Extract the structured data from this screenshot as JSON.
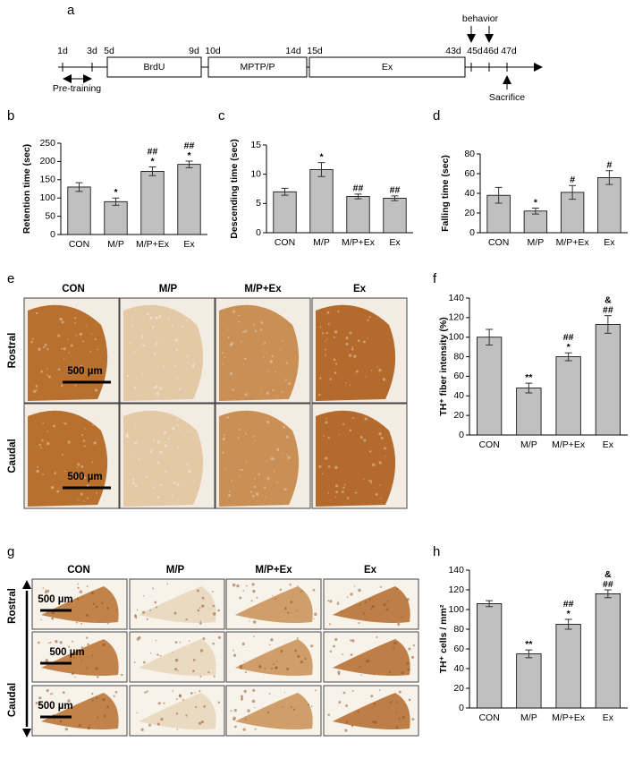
{
  "panel_labels": [
    "a",
    "b",
    "c",
    "d",
    "e",
    "f",
    "g",
    "h"
  ],
  "timeline": {
    "days": [
      "1d",
      "3d",
      "5d",
      "9d",
      "10d",
      "14d",
      "15d",
      "43d",
      "45d",
      "46d",
      "47d"
    ],
    "periods": [
      "BrdU",
      "MPTP/P",
      "Ex"
    ],
    "pre_training": "Pre-training",
    "behavior": "behavior",
    "sacrifice": "Sacrifice"
  },
  "chart_data": [
    {
      "type": "bar",
      "y_label": "Retention time (sec)",
      "categories": [
        "CON",
        "M/P",
        "M/P+Ex",
        "Ex"
      ],
      "values": [
        130,
        90,
        173,
        192
      ],
      "errors": [
        12,
        10,
        12,
        9
      ],
      "annotations": [
        null,
        [
          "*"
        ],
        [
          "##",
          "*"
        ],
        [
          "##",
          "*"
        ]
      ],
      "ylim": [
        0,
        250
      ],
      "yticks": [
        0,
        50,
        100,
        150,
        200,
        250
      ],
      "color": "#c0c0c0"
    },
    {
      "type": "bar",
      "y_label": "Descending time (sec)",
      "categories": [
        "CON",
        "M/P",
        "M/P+Ex",
        "Ex"
      ],
      "values": [
        7.0,
        10.8,
        6.2,
        5.9
      ],
      "errors": [
        0.6,
        1.2,
        0.4,
        0.4
      ],
      "annotations": [
        null,
        [
          "*"
        ],
        [
          "##"
        ],
        [
          "##"
        ]
      ],
      "ylim": [
        0,
        15
      ],
      "yticks": [
        0,
        5,
        10,
        15
      ],
      "color": "#c0c0c0"
    },
    {
      "type": "bar",
      "y_label": "Falling time (sec)",
      "categories": [
        "CON",
        "M/P",
        "M/P+Ex",
        "Ex"
      ],
      "values": [
        38,
        22,
        41,
        56
      ],
      "errors": [
        8,
        3,
        7,
        7
      ],
      "annotations": [
        null,
        [
          "*"
        ],
        [
          "#"
        ],
        [
          "#"
        ]
      ],
      "ylim": [
        0,
        80
      ],
      "yticks": [
        0,
        20,
        40,
        60,
        80
      ],
      "color": "#c0c0c0"
    },
    {
      "type": "bar",
      "y_label": "TH⁺ fiber intensity (%)",
      "categories": [
        "CON",
        "M/P",
        "M/P+Ex",
        "Ex"
      ],
      "values": [
        100,
        48,
        80,
        113
      ],
      "errors": [
        8,
        5,
        4,
        9
      ],
      "annotations": [
        null,
        [
          "**"
        ],
        [
          "##",
          "*"
        ],
        [
          "&",
          "##"
        ]
      ],
      "ylim": [
        0,
        140
      ],
      "yticks": [
        0,
        20,
        40,
        60,
        80,
        100,
        120,
        140
      ],
      "color": "#c0c0c0"
    },
    {
      "type": "bar",
      "y_label": "TH⁺ cells / mm²",
      "categories": [
        "CON",
        "M/P",
        "M/P+Ex",
        "Ex"
      ],
      "values": [
        106,
        55,
        85,
        116
      ],
      "errors": [
        3,
        4,
        5,
        4
      ],
      "annotations": [
        null,
        [
          "**"
        ],
        [
          "##",
          "*"
        ],
        [
          "&",
          "##"
        ]
      ],
      "ylim": [
        0,
        140
      ],
      "yticks": [
        0,
        20,
        40,
        60,
        80,
        100,
        120,
        140
      ],
      "color": "#c0c0c0"
    }
  ],
  "panel_e": {
    "columns": [
      "CON",
      "M/P",
      "M/P+Ex",
      "Ex"
    ],
    "rows": [
      "Rostral",
      "Caudal"
    ],
    "scale_bar": "500 µm"
  },
  "panel_g": {
    "columns": [
      "CON",
      "M/P",
      "M/P+Ex",
      "Ex"
    ],
    "rows": [
      "Rostral",
      "Caudal"
    ],
    "scale_bar": "500 µm"
  }
}
